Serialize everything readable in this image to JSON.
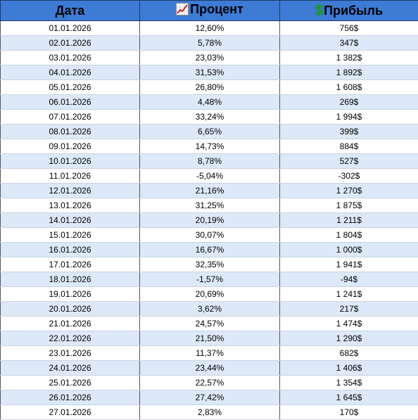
{
  "colors": {
    "header_bg": "#3d7bd5",
    "row_alt_bg": "#dde9f9",
    "money_icon": "#1aa31a",
    "chart_icon_line": "#d62020"
  },
  "header": {
    "date_label": "Дата",
    "percent_label": "Процент",
    "percent_icon": "chart-increasing-icon",
    "profit_label": "Прибыль",
    "profit_icon": "dollar-sign-icon"
  },
  "rows": [
    {
      "date": "01.01.2026",
      "percent": "12,60%",
      "profit": "756$"
    },
    {
      "date": "02.01.2026",
      "percent": "5,78%",
      "profit": "347$"
    },
    {
      "date": "03.01.2026",
      "percent": "23,03%",
      "profit": "1 382$"
    },
    {
      "date": "04.01.2026",
      "percent": "31,53%",
      "profit": "1 892$"
    },
    {
      "date": "05.01.2026",
      "percent": "26,80%",
      "profit": "1 608$"
    },
    {
      "date": "06.01.2026",
      "percent": "4,48%",
      "profit": "269$"
    },
    {
      "date": "07.01.2026",
      "percent": "33,24%",
      "profit": "1 994$"
    },
    {
      "date": "08.01.2026",
      "percent": "6,65%",
      "profit": "399$"
    },
    {
      "date": "09.01.2026",
      "percent": "14,73%",
      "profit": "884$"
    },
    {
      "date": "10.01.2026",
      "percent": "8,78%",
      "profit": "527$"
    },
    {
      "date": "11.01.2026",
      "percent": "-5,04%",
      "profit": "-302$"
    },
    {
      "date": "12.01.2026",
      "percent": "21,16%",
      "profit": "1 270$"
    },
    {
      "date": "13.01.2026",
      "percent": "31,25%",
      "profit": "1 875$"
    },
    {
      "date": "14.01.2026",
      "percent": "20,19%",
      "profit": "1 211$"
    },
    {
      "date": "15.01.2026",
      "percent": "30,07%",
      "profit": "1 804$"
    },
    {
      "date": "16.01.2026",
      "percent": "16,67%",
      "profit": "1 000$"
    },
    {
      "date": "17.01.2026",
      "percent": "32,35%",
      "profit": "1 941$"
    },
    {
      "date": "18.01.2026",
      "percent": "-1,57%",
      "profit": "-94$"
    },
    {
      "date": "19.01.2026",
      "percent": "20,69%",
      "profit": "1 241$"
    },
    {
      "date": "20.01.2026",
      "percent": "3,62%",
      "profit": "217$"
    },
    {
      "date": "21.01.2026",
      "percent": "24,57%",
      "profit": "1 474$"
    },
    {
      "date": "22.01.2026",
      "percent": "21,50%",
      "profit": "1 290$"
    },
    {
      "date": "23.01.2026",
      "percent": "11,37%",
      "profit": "682$"
    },
    {
      "date": "24.01.2026",
      "percent": "23,44%",
      "profit": "1 406$"
    },
    {
      "date": "25.01.2026",
      "percent": "22,57%",
      "profit": "1 354$"
    },
    {
      "date": "26.01.2026",
      "percent": "27,42%",
      "profit": "1 645$"
    },
    {
      "date": "27.01.2026",
      "percent": "2,83%",
      "profit": "170$"
    }
  ]
}
